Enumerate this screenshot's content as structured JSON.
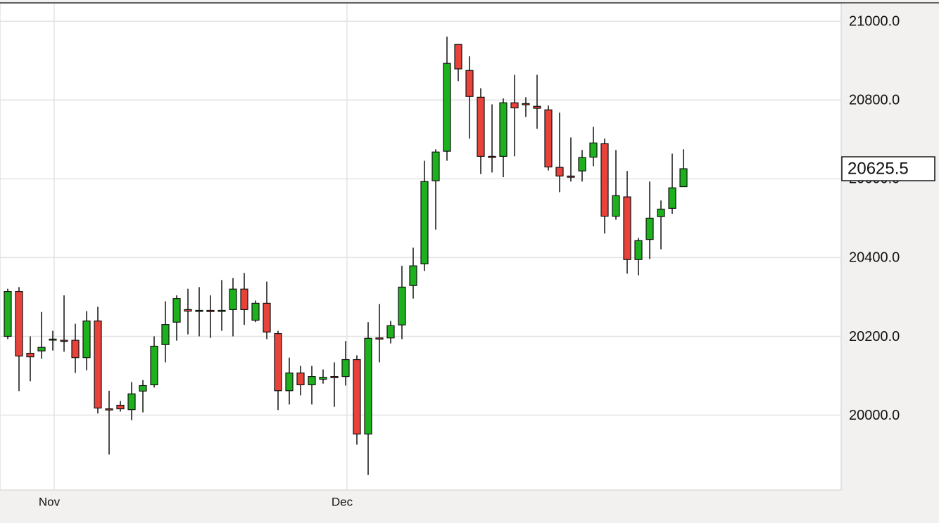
{
  "chart_data": {
    "type": "candlestick",
    "categories": [
      null,
      null,
      null,
      null,
      "Nov",
      null,
      null,
      null,
      null,
      null,
      null,
      null,
      null,
      null,
      null,
      null,
      null,
      null,
      null,
      null,
      null,
      null,
      null,
      null,
      null,
      null,
      null,
      null,
      null,
      null,
      "Dec",
      null,
      null,
      null,
      null,
      null,
      null,
      null,
      null,
      null,
      null,
      null,
      null,
      null,
      null,
      null,
      null,
      null,
      null,
      null,
      null,
      null,
      null,
      null,
      null,
      null,
      null,
      null,
      null,
      null,
      null
    ],
    "open": [
      20200,
      20314,
      20157,
      20163,
      20191,
      20190,
      20190,
      20146,
      20239,
      20016,
      20025,
      20014,
      20061,
      20077,
      20179,
      20236,
      20268,
      20266,
      20266,
      20264,
      20268,
      20320,
      20241,
      20284,
      20207,
      20062,
      20107,
      20077,
      20091,
      20098,
      20098,
      20141,
      19952,
      20196,
      20196,
      20229,
      20329,
      20384,
      20595,
      20670,
      20941,
      20875,
      20807,
      20657,
      20657,
      20793,
      20791,
      20784,
      20775,
      20629,
      20607,
      20620,
      20655,
      20689,
      20505,
      20554,
      20395,
      20446,
      20504,
      20525,
      20580
    ],
    "high": [
      20321,
      20325,
      20200,
      20262,
      20214,
      20304,
      20232,
      20264,
      20275,
      20062,
      20036,
      20084,
      20089,
      20200,
      20289,
      20304,
      20321,
      20325,
      20304,
      20343,
      20348,
      20361,
      20291,
      20339,
      20214,
      20146,
      20125,
      20125,
      20116,
      20134,
      20188,
      20152,
      20236,
      20282,
      20239,
      20379,
      20425,
      20646,
      20675,
      20961,
      20941,
      20911,
      20830,
      20789,
      20804,
      20864,
      20807,
      20864,
      20786,
      20768,
      20705,
      20673,
      20732,
      20702,
      20673,
      20620,
      20450,
      20593,
      20545,
      20664,
      20675
    ],
    "low": [
      20193,
      20061,
      20086,
      20143,
      20164,
      20161,
      20107,
      20114,
      20004,
      19900,
      20009,
      19987,
      20007,
      20070,
      20134,
      20189,
      20205,
      20200,
      20196,
      20214,
      20200,
      20229,
      20236,
      20193,
      20013,
      20027,
      20050,
      20027,
      20080,
      20021,
      20075,
      19925,
      19848,
      20134,
      20182,
      20193,
      20296,
      20366,
      20471,
      20646,
      20848,
      20702,
      20612,
      20616,
      20604,
      20657,
      20757,
      20727,
      20621,
      20566,
      20593,
      20593,
      20632,
      20461,
      20496,
      20359,
      20355,
      20396,
      20421,
      20511,
      20580
    ],
    "close": [
      20314,
      20150,
      20148,
      20172,
      20193,
      20188,
      20146,
      20239,
      20018,
      20013,
      20016,
      20054,
      20075,
      20175,
      20230,
      20296,
      20264,
      20266,
      20263,
      20266,
      20320,
      20268,
      20284,
      20211,
      20062,
      20107,
      20077,
      20098,
      20096,
      20095,
      20141,
      19952,
      20195,
      20193,
      20227,
      20325,
      20379,
      20593,
      20668,
      20893,
      20879,
      20809,
      20657,
      20654,
      20793,
      20780,
      20788,
      20779,
      20630,
      20607,
      20604,
      20654,
      20691,
      20505,
      20557,
      20395,
      20443,
      20500,
      20523,
      20577,
      20625.5
    ],
    "up_color": "#1db21d",
    "down_color": "#e8433a",
    "ylim": [
      19810,
      21045
    ],
    "yticks": [
      {
        "value": 20000,
        "label": "20000.0"
      },
      {
        "value": 20200,
        "label": "20200.0"
      },
      {
        "value": 20400,
        "label": "20400.0"
      },
      {
        "value": 20600,
        "label": "20600.0"
      },
      {
        "value": 20800,
        "label": "20800.0"
      },
      {
        "value": 21000,
        "label": "21000.0"
      }
    ],
    "grid": true
  }
}
